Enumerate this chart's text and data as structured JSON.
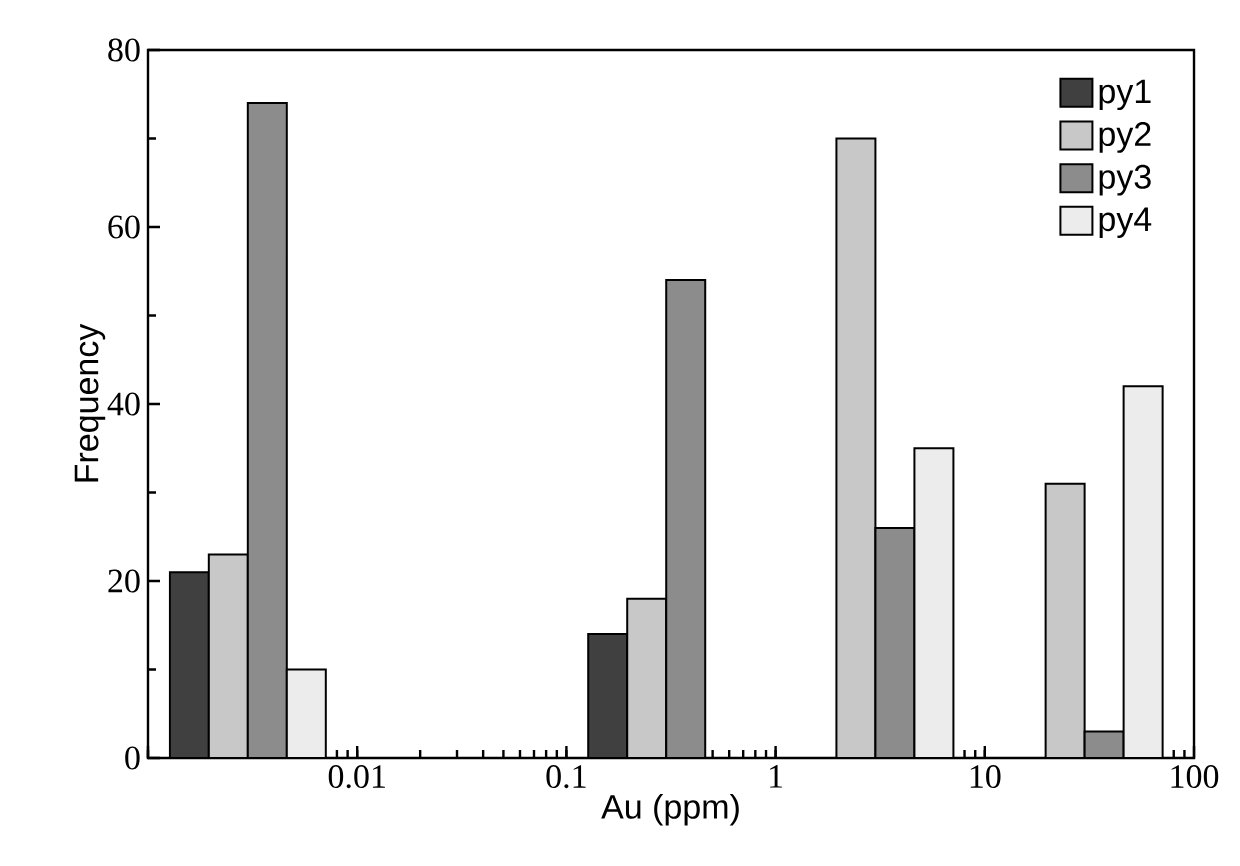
{
  "chart_data": {
    "type": "bar",
    "xlabel": "Au (ppm)",
    "ylabel": "Frequency",
    "x": [
      0.003,
      0.3,
      3,
      30
    ],
    "log": "x",
    "xlim": [
      0.001,
      100
    ],
    "xticks": [
      {
        "value": 0.001,
        "label": null
      },
      0.01,
      0.1,
      1,
      10,
      100
    ],
    "ylim": [
      0,
      80
    ],
    "yticks": [
      0,
      20,
      40,
      60,
      80
    ],
    "legend": "top right",
    "series": [
      {
        "name": "py1",
        "color": "#404040",
        "values": [
          21,
          14,
          0,
          0
        ]
      },
      {
        "name": "py2",
        "color": "#c8c8c8",
        "values": [
          23,
          18,
          70,
          31
        ]
      },
      {
        "name": "py3",
        "color": "#8c8c8c",
        "values": [
          74,
          54,
          26,
          3
        ]
      },
      {
        "name": "py4",
        "color": "#ececec",
        "values": [
          10,
          0,
          35,
          42
        ]
      }
    ]
  }
}
